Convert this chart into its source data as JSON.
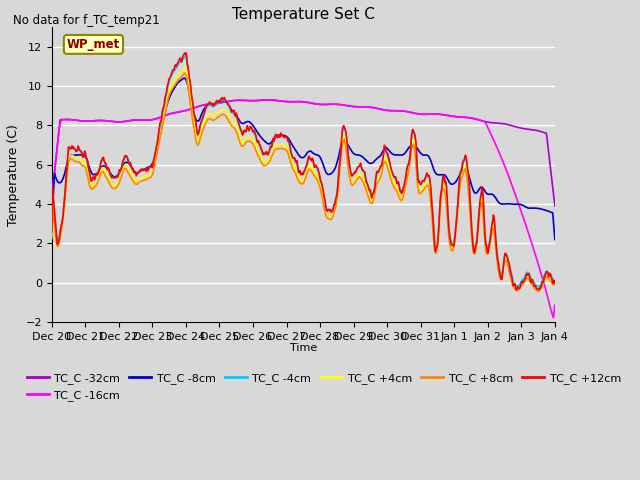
{
  "title": "Temperature Set C",
  "subtitle": "No data for f_TC_temp21",
  "xlabel": "Time",
  "ylabel": "Temperature (C)",
  "ylim": [
    -2,
    13
  ],
  "yticks": [
    -2,
    0,
    2,
    4,
    6,
    8,
    10,
    12
  ],
  "background_color": "#d8d8d8",
  "plot_bg_color": "#d8d8d8",
  "grid_color": "#ffffff",
  "wp_met_box_color": "#ffffcc",
  "wp_met_box_edge": "#cc0000",
  "series_colors": {
    "TC_C -32cm": "#aa00cc",
    "TC_C -16cm": "#ff00ff",
    "TC_C -8cm": "#0000cc",
    "TC_C -4cm": "#00ccff",
    "TC_C +4cm": "#ffff00",
    "TC_C +8cm": "#ff8800",
    "TC_C +12cm": "#ff0000"
  },
  "xtick_labels": [
    "Dec 20",
    "Dec 21",
    "Dec 22",
    "Dec 23",
    "Dec 24",
    "Dec 25",
    "Dec 26",
    "Dec 27",
    "Dec 28",
    "Dec 29",
    "Dec 30",
    "Dec 31",
    "Jan 1",
    "Jan 2",
    "Jan 3",
    "Jan 4"
  ],
  "xtick_positions": [
    0,
    24,
    48,
    72,
    96,
    120,
    144,
    168,
    192,
    216,
    240,
    264,
    288,
    312,
    336,
    360
  ]
}
